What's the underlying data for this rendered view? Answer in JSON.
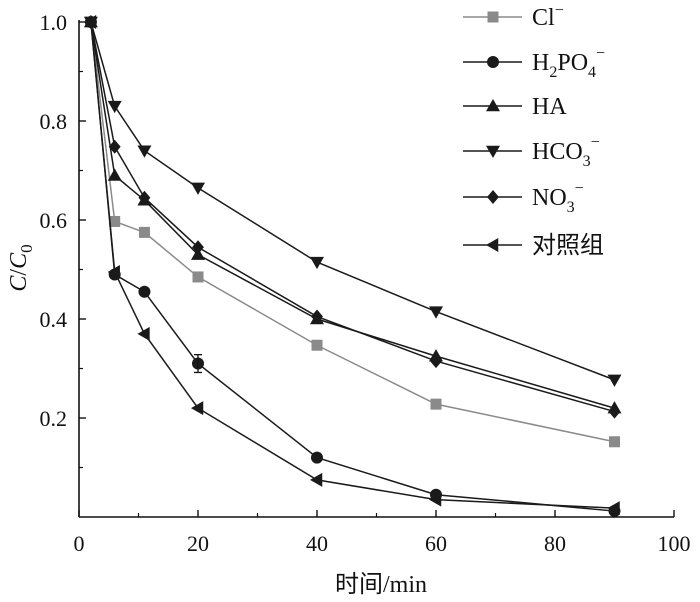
{
  "chart_data": {
    "type": "line",
    "title": "",
    "xlabel": "时间/min",
    "ylabel": "C/C0",
    "xlim": [
      0,
      100
    ],
    "ylim": [
      0,
      1.0
    ],
    "x_ticks": [
      0,
      20,
      40,
      60,
      80,
      100
    ],
    "y_ticks": [
      0.2,
      0.4,
      0.6,
      0.8,
      1.0
    ],
    "x_tick_labels": [
      "0",
      "20",
      "40",
      "60",
      "80",
      "100"
    ],
    "y_tick_labels": [
      "0.2",
      "0.4",
      "0.6",
      "0.8",
      "1.0"
    ],
    "grid": false,
    "legend_position": "top-right",
    "x": [
      2,
      6,
      11,
      20,
      40,
      60,
      90
    ],
    "series": [
      {
        "name": "Cl⁻",
        "marker": "square",
        "color": "#8a8a8a",
        "values": [
          1.0,
          0.597,
          0.575,
          0.485,
          0.347,
          0.228,
          0.152
        ]
      },
      {
        "name": "H2PO4−",
        "marker": "circle",
        "color": "#1a1a1a",
        "values": [
          1.0,
          0.49,
          0.455,
          0.31,
          0.12,
          0.045,
          0.012
        ]
      },
      {
        "name": "HA",
        "marker": "triangle-up",
        "color": "#1a1a1a",
        "values": [
          1.0,
          0.69,
          0.64,
          0.53,
          0.4,
          0.325,
          0.22
        ]
      },
      {
        "name": "HCO3−",
        "marker": "triangle-down",
        "color": "#1a1a1a",
        "values": [
          1.0,
          0.83,
          0.74,
          0.665,
          0.515,
          0.415,
          0.277
        ]
      },
      {
        "name": "NO3−",
        "marker": "diamond",
        "color": "#1a1a1a",
        "values": [
          1.0,
          0.748,
          0.645,
          0.545,
          0.405,
          0.315,
          0.213
        ]
      },
      {
        "name": "对照组",
        "marker": "triangle-left",
        "color": "#1a1a1a",
        "values": [
          1.0,
          0.495,
          0.37,
          0.22,
          0.075,
          0.035,
          0.018
        ]
      }
    ],
    "error_bars": [
      {
        "series": "H2PO4−",
        "x": 20,
        "value": 0.31,
        "err": 0.018
      }
    ]
  },
  "legend": {
    "items": [
      {
        "base": "Cl",
        "sub": "",
        "sup": "−"
      },
      {
        "base": "H",
        "sub": "2",
        "mid": "PO",
        "sub2": "4",
        "sup": "−"
      },
      {
        "base": "HA",
        "sub": "",
        "sup": ""
      },
      {
        "base": "HCO",
        "sub": "3",
        "sup": "−"
      },
      {
        "base": "NO",
        "sub": "3",
        "sup": "−"
      },
      {
        "base": "对照组",
        "sub": "",
        "sup": ""
      }
    ]
  },
  "axis": {
    "ylabel_c": "C",
    "ylabel_slash": "/",
    "ylabel_c0": "C",
    "ylabel_sub": "0"
  }
}
